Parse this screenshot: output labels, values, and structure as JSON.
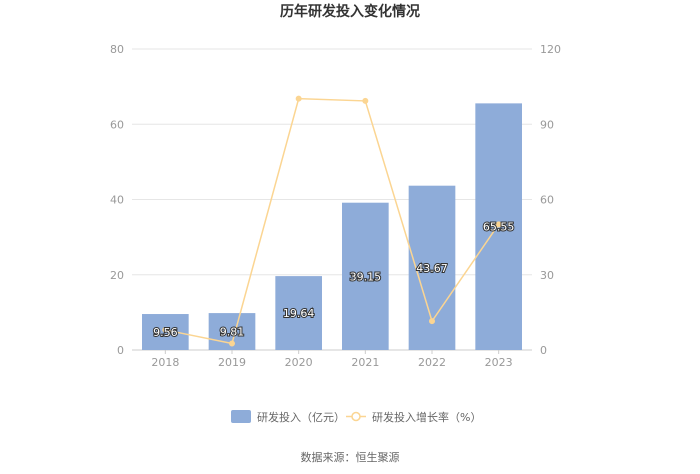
{
  "chart_data": {
    "type": "bar",
    "title": "历年研发投入变化情况",
    "categories": [
      "2018",
      "2019",
      "2020",
      "2021",
      "2022",
      "2023"
    ],
    "series": [
      {
        "name": "研发投入（亿元）",
        "type": "bar",
        "axis": "left",
        "color": "#8eacd9",
        "values": [
          9.56,
          9.81,
          19.64,
          39.15,
          43.67,
          65.55
        ],
        "labels": [
          "9.56",
          "9.81",
          "19.64",
          "39.15",
          "43.67",
          "65.55"
        ]
      },
      {
        "name": "研发投入增长率（%）",
        "type": "line",
        "axis": "right",
        "color": "#fbd592",
        "values": [
          8.0,
          2.6,
          100.2,
          99.3,
          11.5,
          50.1
        ]
      }
    ],
    "y_left": {
      "min": 0,
      "max": 80,
      "ticks": [
        "0",
        "20",
        "40",
        "60",
        "80"
      ]
    },
    "y_right": {
      "min": 0,
      "max": 120,
      "ticks": [
        "0",
        "30",
        "60",
        "90",
        "120"
      ]
    },
    "grid": true,
    "legend": "bottom"
  },
  "source": "数据来源：恒生聚源"
}
